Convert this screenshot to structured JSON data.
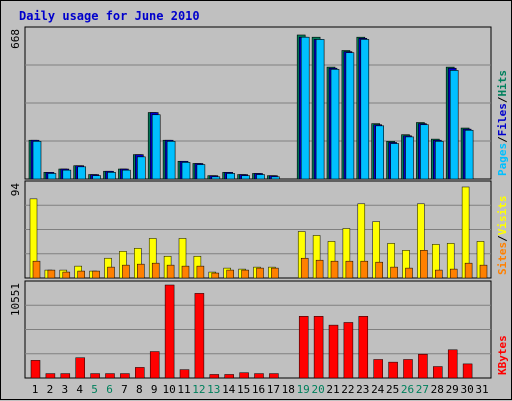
{
  "title": "Daily usage for June 2010",
  "colors": {
    "pages": "#00c0ff",
    "files": "#0000cc",
    "hits": "#00805c",
    "visits": "#ffff00",
    "sites": "#ff8000",
    "kbytes": "#ff0000",
    "background": "#c0c0c0",
    "grid": "#808080",
    "weekend_label": "#00805c"
  },
  "chart_data": [
    {
      "type": "bar",
      "title": "",
      "legend": [
        "Pages",
        "/",
        "Files",
        "/",
        "Hits"
      ],
      "ymax_label": "668",
      "ylim": [
        0,
        668
      ],
      "categories": [
        "1",
        "2",
        "3",
        "4",
        "5",
        "6",
        "7",
        "8",
        "9",
        "10",
        "11",
        "12",
        "13",
        "14",
        "15",
        "16",
        "17",
        "18",
        "19",
        "20",
        "21",
        "22",
        "23",
        "24",
        "25",
        "26",
        "27",
        "28",
        "29",
        "30",
        "31"
      ],
      "series": [
        {
          "name": "Hits",
          "values": [
            175,
            30,
            45,
            60,
            20,
            35,
            45,
            110,
            300,
            175,
            80,
            70,
            15,
            30,
            20,
            25,
            15,
            0,
            650,
            640,
            505,
            580,
            640,
            250,
            170,
            200,
            255,
            180,
            505,
            230,
            0
          ]
        },
        {
          "name": "Files",
          "values": [
            175,
            30,
            45,
            60,
            20,
            35,
            45,
            110,
            300,
            175,
            80,
            70,
            15,
            30,
            20,
            25,
            15,
            0,
            640,
            630,
            500,
            575,
            635,
            245,
            165,
            195,
            250,
            175,
            500,
            225,
            0
          ]
        },
        {
          "name": "Pages",
          "values": [
            170,
            25,
            40,
            55,
            15,
            30,
            40,
            100,
            290,
            170,
            75,
            65,
            10,
            25,
            15,
            20,
            10,
            0,
            640,
            630,
            495,
            570,
            630,
            240,
            160,
            190,
            245,
            170,
            490,
            220,
            0
          ]
        }
      ]
    },
    {
      "type": "bar",
      "title": "",
      "legend": [
        "Sites",
        "/",
        "Visits"
      ],
      "ymax_label": "94",
      "ylim": [
        0,
        94
      ],
      "categories": [
        "1",
        "2",
        "3",
        "4",
        "5",
        "6",
        "7",
        "8",
        "9",
        "10",
        "11",
        "12",
        "13",
        "14",
        "15",
        "16",
        "17",
        "18",
        "19",
        "20",
        "21",
        "22",
        "23",
        "24",
        "25",
        "26",
        "27",
        "28",
        "29",
        "30",
        "31"
      ],
      "series": [
        {
          "name": "Visits",
          "values": [
            80,
            8,
            8,
            12,
            7,
            20,
            27,
            30,
            40,
            22,
            40,
            22,
            6,
            10,
            9,
            11,
            11,
            0,
            47,
            43,
            37,
            50,
            75,
            57,
            35,
            28,
            75,
            34,
            35,
            92,
            37
          ]
        },
        {
          "name": "Sites",
          "values": [
            17,
            8,
            6,
            7,
            7,
            11,
            13,
            14,
            15,
            13,
            12,
            12,
            5,
            8,
            8,
            10,
            10,
            0,
            20,
            18,
            17,
            17,
            17,
            16,
            11,
            10,
            28,
            8,
            9,
            15,
            13
          ]
        }
      ]
    },
    {
      "type": "bar",
      "title": "",
      "legend": [
        "KBytes"
      ],
      "ymax_label": "10551",
      "ylim": [
        0,
        10551
      ],
      "categories": [
        "1",
        "2",
        "3",
        "4",
        "5",
        "6",
        "7",
        "8",
        "9",
        "10",
        "11",
        "12",
        "13",
        "14",
        "15",
        "16",
        "17",
        "18",
        "19",
        "20",
        "21",
        "22",
        "23",
        "24",
        "25",
        "26",
        "27",
        "28",
        "29",
        "30",
        "31"
      ],
      "series": [
        {
          "name": "KBytes",
          "values": [
            2000,
            500,
            500,
            2300,
            500,
            500,
            500,
            1200,
            3000,
            10551,
            950,
            9600,
            400,
            400,
            600,
            500,
            500,
            0,
            7000,
            7000,
            6000,
            6300,
            7000,
            2100,
            1800,
            2100,
            2700,
            1300,
            3200,
            1600,
            0
          ]
        }
      ]
    }
  ],
  "weekend_days": [
    5,
    6,
    12,
    13,
    19,
    20,
    26,
    27
  ]
}
